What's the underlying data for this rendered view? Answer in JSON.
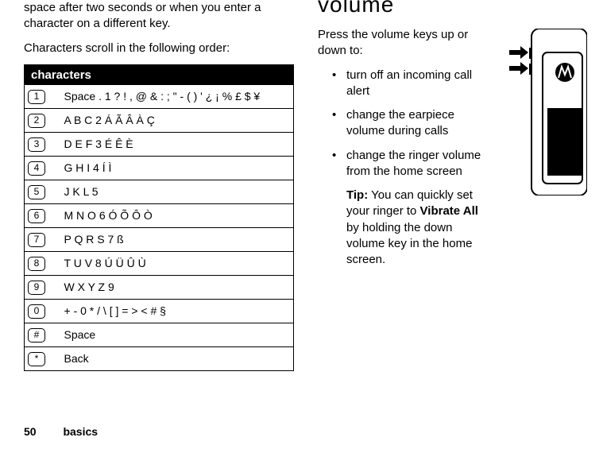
{
  "left": {
    "p1": "space after two seconds or when you enter a character on a different key.",
    "p2": "Characters scroll in the following order:",
    "tableHeader": "characters",
    "rows": [
      {
        "key": "1",
        "chars": "Space . 1 ? ! , @ & : ; \" - ( ) ' ¿ ¡ % £ $ ¥"
      },
      {
        "key": "2",
        "chars": "A B C 2 Á Ã Â À Ç"
      },
      {
        "key": "3",
        "chars": "D E F 3 É Ê È"
      },
      {
        "key": "4",
        "chars": "G H I 4 Í Ì"
      },
      {
        "key": "5",
        "chars": "J K L 5"
      },
      {
        "key": "6",
        "chars": "M N O 6 Ó Õ Ô Ò"
      },
      {
        "key": "7",
        "chars": "P Q R S 7 ß"
      },
      {
        "key": "8",
        "chars": "T U V 8 Ú Ü Û Ù"
      },
      {
        "key": "9",
        "chars": "W X Y Z 9"
      },
      {
        "key": "0",
        "chars": "+ - 0 * / \\ [ ] = > < # §"
      },
      {
        "key": "#",
        "chars": "Space"
      },
      {
        "key": "*",
        "chars": "Back"
      }
    ]
  },
  "right": {
    "heading": "volume",
    "intro": "Press the volume keys up or down to:",
    "bullets": [
      "turn off an incoming call alert",
      "change the earpiece volume during calls",
      "change the ringer volume from the home screen"
    ],
    "tipLabel": "Tip:",
    "tipPre": " You can quickly set your ringer to ",
    "tipBold": "Vibrate All",
    "tipPost": " by holding the down volume key in the home screen."
  },
  "footer": {
    "page": "50",
    "section": "basics"
  }
}
